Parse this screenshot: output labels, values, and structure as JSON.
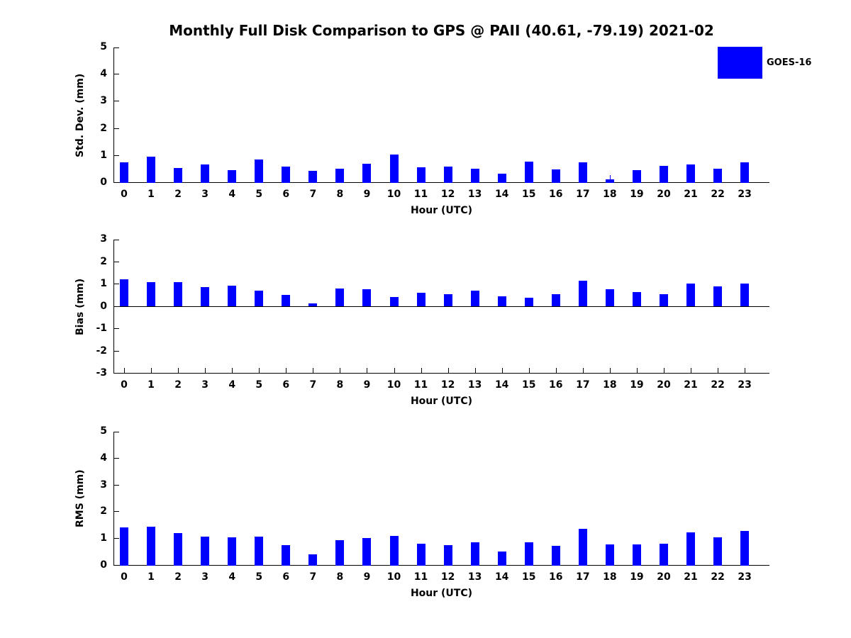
{
  "title": "Monthly Full Disk Comparison to GPS @ PAII (40.61, -79.19) 2021-02",
  "legend": {
    "label": "GOES-16",
    "color": "#0000FF",
    "position": "top-right"
  },
  "colors": {
    "bar": "#0000FF",
    "axis": "#000000",
    "background": "#FFFFFF"
  },
  "xlabel": "Hour (UTC)",
  "chart_data": [
    {
      "type": "bar",
      "name": "std-dev",
      "ylabel": "Std. Dev. (mm)",
      "xlabel": "Hour (UTC)",
      "ylim": [
        0,
        5
      ],
      "yticks": [
        0,
        1,
        2,
        3,
        4,
        5
      ],
      "grid": false,
      "categories": [
        0,
        1,
        2,
        3,
        4,
        5,
        6,
        7,
        8,
        9,
        10,
        11,
        12,
        13,
        14,
        15,
        16,
        17,
        18,
        19,
        20,
        21,
        22,
        23
      ],
      "series": [
        {
          "name": "GOES-16",
          "color": "#0000FF",
          "values": [
            0.77,
            0.96,
            0.55,
            0.69,
            0.48,
            0.86,
            0.59,
            0.44,
            0.53,
            0.7,
            1.04,
            0.57,
            0.61,
            0.52,
            0.34,
            0.79,
            0.51,
            0.77,
            0.13,
            0.46,
            0.64,
            0.69,
            0.52,
            0.77
          ]
        }
      ],
      "whiskers": [
        {
          "category": 18,
          "from": 0.13,
          "to": 0.3
        }
      ]
    },
    {
      "type": "bar",
      "name": "bias",
      "ylabel": "Bias (mm)",
      "xlabel": "Hour (UTC)",
      "ylim": [
        -3,
        3
      ],
      "yticks": [
        -3,
        -2,
        -1,
        0,
        1,
        2,
        3
      ],
      "grid": false,
      "zero_line": true,
      "categories": [
        0,
        1,
        2,
        3,
        4,
        5,
        6,
        7,
        8,
        9,
        10,
        11,
        12,
        13,
        14,
        15,
        16,
        17,
        18,
        19,
        20,
        21,
        22,
        23
      ],
      "series": [
        {
          "name": "GOES-16",
          "color": "#0000FF",
          "values": [
            1.22,
            1.1,
            1.1,
            0.86,
            0.93,
            0.7,
            0.52,
            0.13,
            0.81,
            0.79,
            0.44,
            0.63,
            0.56,
            0.72,
            0.46,
            0.41,
            0.57,
            1.15,
            0.79,
            0.66,
            0.56,
            1.04,
            0.91,
            1.04
          ]
        }
      ],
      "whiskers": []
    },
    {
      "type": "bar",
      "name": "rms",
      "ylabel": "RMS (mm)",
      "xlabel": "Hour (UTC)",
      "ylim": [
        0,
        5
      ],
      "yticks": [
        0,
        1,
        2,
        3,
        4,
        5
      ],
      "grid": false,
      "categories": [
        0,
        1,
        2,
        3,
        4,
        5,
        6,
        7,
        8,
        9,
        10,
        11,
        12,
        13,
        14,
        15,
        16,
        17,
        18,
        19,
        20,
        21,
        22,
        23
      ],
      "series": [
        {
          "name": "GOES-16",
          "color": "#0000FF",
          "values": [
            1.44,
            1.46,
            1.22,
            1.09,
            1.06,
            1.09,
            0.77,
            0.43,
            0.94,
            1.03,
            1.11,
            0.83,
            0.77,
            0.88,
            0.53,
            0.88,
            0.73,
            1.38,
            0.8,
            0.79,
            0.83,
            1.24,
            1.06,
            1.3
          ]
        }
      ]
    }
  ]
}
